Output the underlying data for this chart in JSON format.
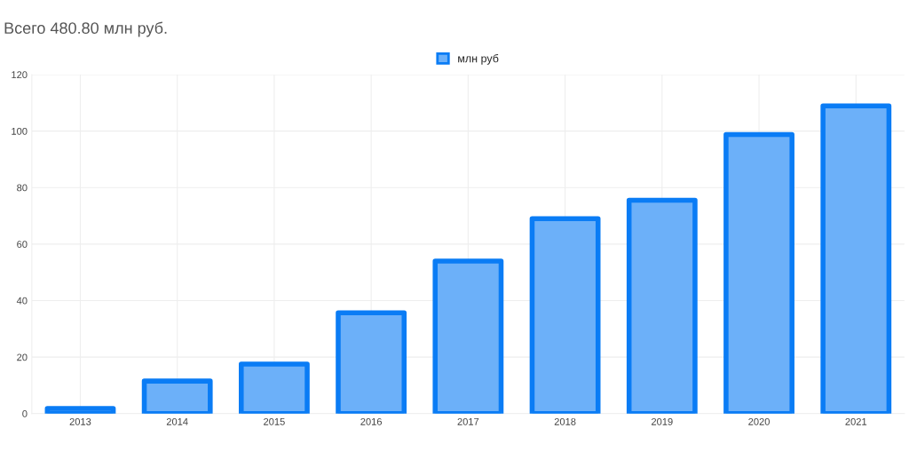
{
  "chart_data": {
    "type": "bar",
    "title": "Всего 480.80 млн руб.",
    "categories": [
      "2013",
      "2014",
      "2015",
      "2016",
      "2017",
      "2018",
      "2019",
      "2020",
      "2021"
    ],
    "series": [
      {
        "name": "млн руб",
        "color": "#0a7cf5",
        "values": [
          1.8,
          11.5,
          17.5,
          35.7,
          54,
          69,
          75.5,
          98.8,
          108.9
        ]
      }
    ],
    "ylim": [
      0,
      120
    ],
    "yticks": [
      0,
      20,
      40,
      60,
      80,
      100,
      120
    ],
    "grid": true,
    "legend": "top"
  }
}
